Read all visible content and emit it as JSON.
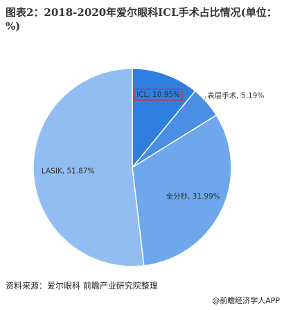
{
  "chart_data": {
    "type": "pie",
    "title": "图表2：2018-2020年爱尔眼科ICL手术占比情况(单位：%)",
    "series": [
      {
        "name": "ICL",
        "color": "#2f7fe0",
        "values": [
          10.95
        ],
        "value_labels": [
          "ICL, 10.95%"
        ]
      },
      {
        "name": "表层手术",
        "color": "#4a8fe4",
        "values": [
          5.19
        ],
        "value_labels": [
          "表层手术, 5.19%"
        ]
      },
      {
        "name": "全分秒",
        "color": "#6ea7ec",
        "values": [
          31.99
        ],
        "value_labels": [
          "全分秒, 31.99%"
        ]
      },
      {
        "name": "LASIK",
        "color": "#91bdf2",
        "values": [
          51.87
        ],
        "value_labels": [
          "LASIK, 51.87%"
        ]
      }
    ],
    "source": "资料来源：爱尔眼科 前瞻产业研究院整理",
    "brand": "@前瞻经济学人APP"
  }
}
